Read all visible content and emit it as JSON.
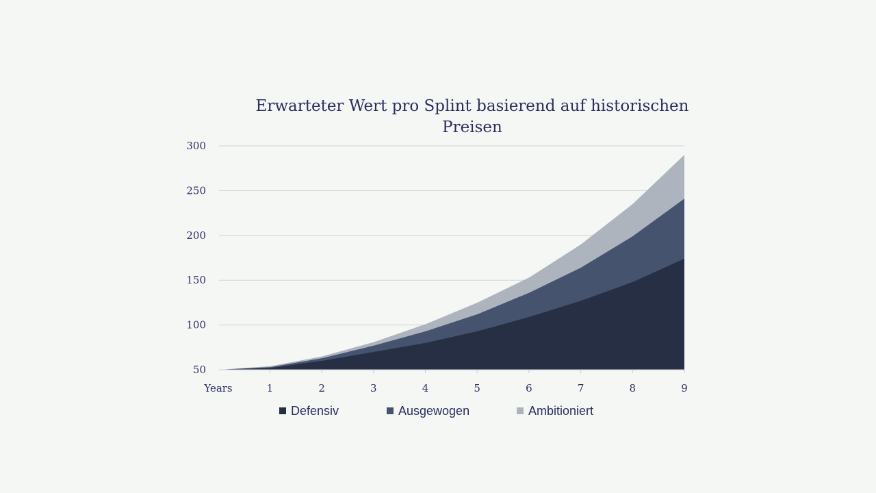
{
  "chart_data": {
    "type": "area",
    "stacked": true,
    "title": "Erwarteter Wert pro Splint basierend auf historischen Preisen",
    "x_label": "Years",
    "x": [
      0,
      1,
      2,
      3,
      4,
      5,
      6,
      7,
      8,
      9
    ],
    "x_tick_labels": [
      "Years",
      "1",
      "2",
      "3",
      "4",
      "5",
      "6",
      "7",
      "8",
      "9"
    ],
    "y_ticks": [
      50,
      100,
      150,
      200,
      250,
      300
    ],
    "ylim": [
      50,
      300
    ],
    "grid": true,
    "legend_position": "bottom",
    "series": [
      {
        "name": "Defensiv",
        "color": "#272f44",
        "values": [
          50,
          52,
          60,
          70,
          80,
          93,
          109,
          127,
          148,
          174
        ]
      },
      {
        "name": "Ausgewogen",
        "color": "#45536f",
        "values": [
          50,
          53,
          63,
          77,
          93,
          112,
          136,
          164,
          199,
          241
        ]
      },
      {
        "name": "Ambitioniert",
        "color": "#aeb4be",
        "values": [
          50,
          54,
          65,
          81,
          101,
          125,
          153,
          190,
          235,
          290
        ]
      }
    ]
  }
}
